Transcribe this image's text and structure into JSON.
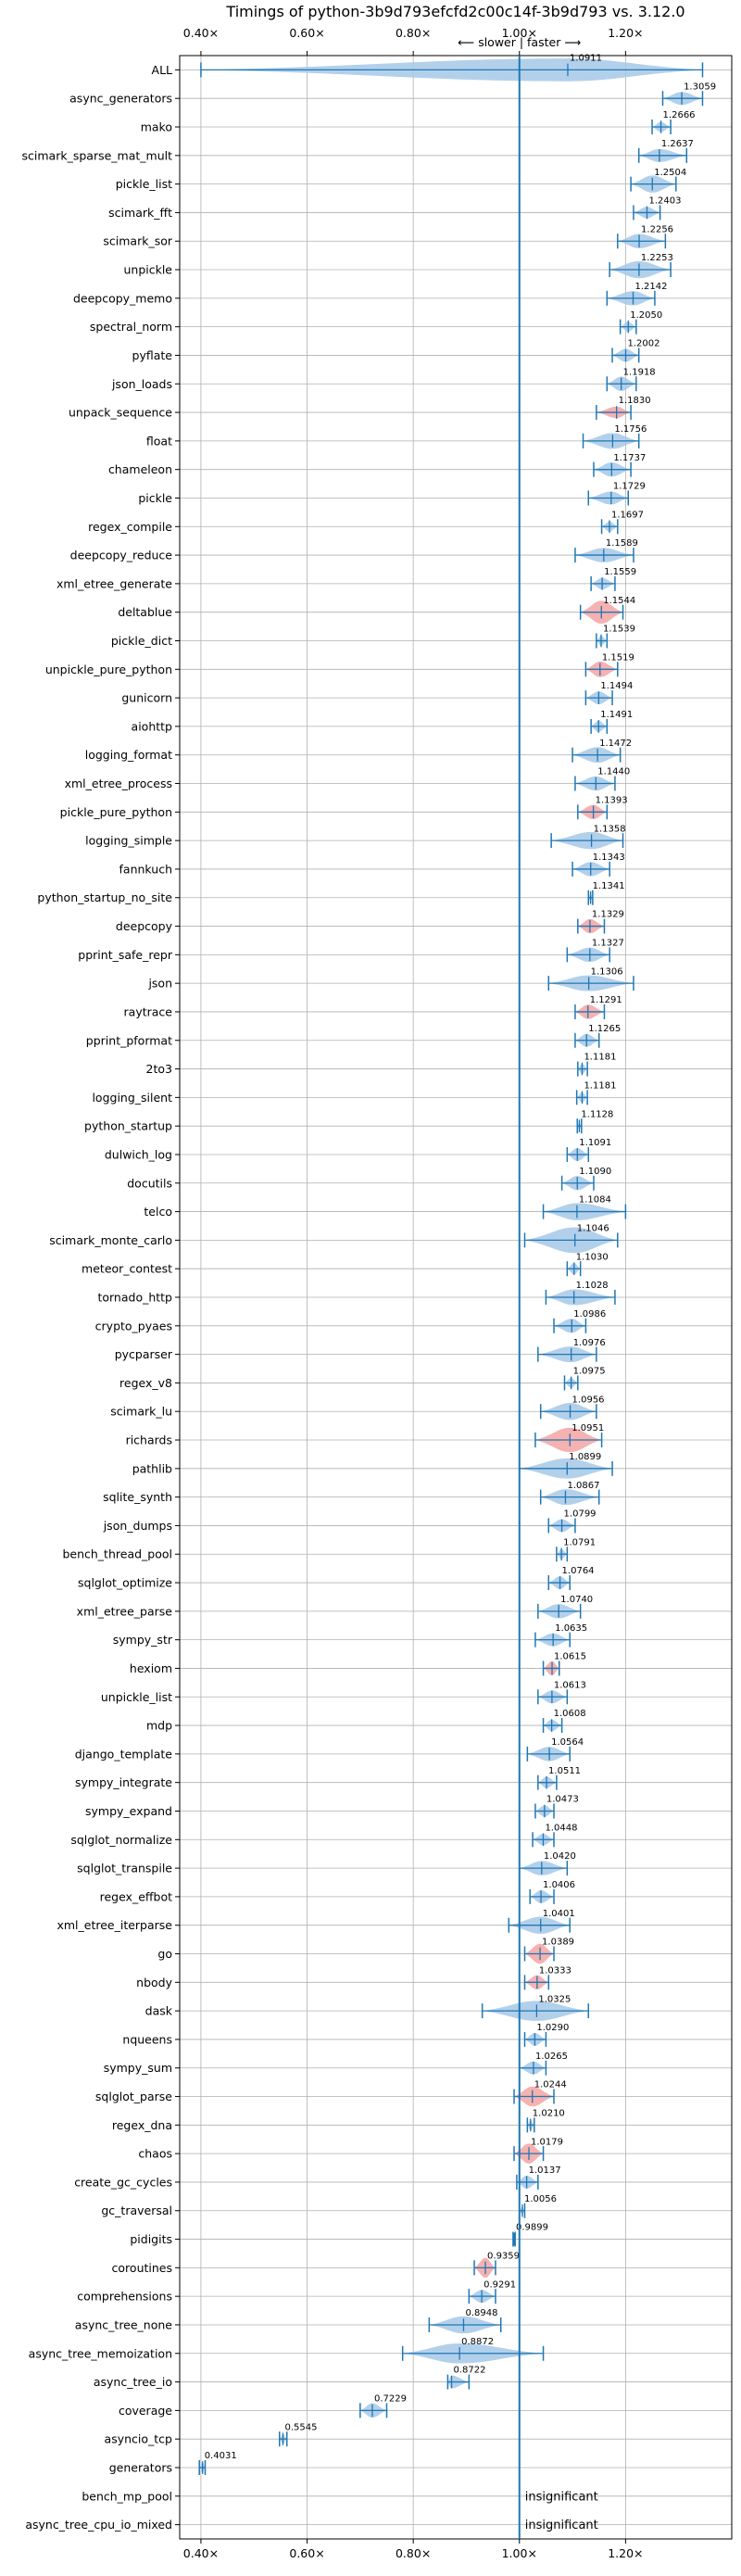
{
  "chart_data": {
    "type": "violin",
    "title": "Timings of python-3b9d793efcfd2c00c14f-3b9d793 vs. 3.12.0",
    "direction_label": "⟵ slower | faster ⟶",
    "x_ticks": [
      {
        "value": 0.4,
        "label": "0.40×"
      },
      {
        "value": 0.6,
        "label": "0.60×"
      },
      {
        "value": 0.8,
        "label": "0.80×"
      },
      {
        "value": 1.0,
        "label": "1.00×"
      },
      {
        "value": 1.2,
        "label": "1.20×"
      }
    ],
    "xlim": [
      0.36,
      1.4
    ],
    "reference_line": 1.0,
    "colors": {
      "faster": "#a6c8e8",
      "slower": "#f5a3a3",
      "line": "#1f77b4",
      "grid": "#b0b0b0"
    },
    "rows": [
      {
        "name": "ALL",
        "value": 1.0911,
        "value_label": "1.0911",
        "min": 0.4,
        "max": 1.345,
        "width": 0.8,
        "slower": false
      },
      {
        "name": "async_generators",
        "value": 1.3059,
        "value_label": "1.3059",
        "min": 1.27,
        "max": 1.345,
        "width": 0.45,
        "slower": false
      },
      {
        "name": "mako",
        "value": 1.2666,
        "value_label": "1.2666",
        "min": 1.25,
        "max": 1.285,
        "width": 0.35,
        "slower": false
      },
      {
        "name": "scimark_sparse_mat_mult",
        "value": 1.2637,
        "value_label": "1.2637",
        "min": 1.225,
        "max": 1.315,
        "width": 0.45,
        "slower": false
      },
      {
        "name": "pickle_list",
        "value": 1.2504,
        "value_label": "1.2504",
        "min": 1.21,
        "max": 1.295,
        "width": 0.6,
        "slower": false
      },
      {
        "name": "scimark_fft",
        "value": 1.2403,
        "value_label": "1.2403",
        "min": 1.215,
        "max": 1.265,
        "width": 0.4,
        "slower": false
      },
      {
        "name": "scimark_sor",
        "value": 1.2256,
        "value_label": "1.2256",
        "min": 1.185,
        "max": 1.275,
        "width": 0.5,
        "slower": false
      },
      {
        "name": "unpickle",
        "value": 1.2253,
        "value_label": "1.2253",
        "min": 1.17,
        "max": 1.285,
        "width": 0.6,
        "slower": false
      },
      {
        "name": "deepcopy_memo",
        "value": 1.2142,
        "value_label": "1.2142",
        "min": 1.165,
        "max": 1.255,
        "width": 0.5,
        "slower": false
      },
      {
        "name": "spectral_norm",
        "value": 1.205,
        "value_label": "1.2050",
        "min": 1.19,
        "max": 1.22,
        "width": 0.35,
        "slower": false
      },
      {
        "name": "pyflate",
        "value": 1.2002,
        "value_label": "1.2002",
        "min": 1.175,
        "max": 1.225,
        "width": 0.45,
        "slower": false
      },
      {
        "name": "json_loads",
        "value": 1.1918,
        "value_label": "1.1918",
        "min": 1.165,
        "max": 1.22,
        "width": 0.5,
        "slower": false
      },
      {
        "name": "unpack_sequence",
        "value": 1.183,
        "value_label": "1.1830",
        "min": 1.145,
        "max": 1.21,
        "width": 0.4,
        "slower": true
      },
      {
        "name": "float",
        "value": 1.1756,
        "value_label": "1.1756",
        "min": 1.12,
        "max": 1.225,
        "width": 0.55,
        "slower": false
      },
      {
        "name": "chameleon",
        "value": 1.1737,
        "value_label": "1.1737",
        "min": 1.14,
        "max": 1.21,
        "width": 0.5,
        "slower": false
      },
      {
        "name": "pickle",
        "value": 1.1729,
        "value_label": "1.1729",
        "min": 1.13,
        "max": 1.205,
        "width": 0.45,
        "slower": false
      },
      {
        "name": "regex_compile",
        "value": 1.1697,
        "value_label": "1.1697",
        "min": 1.155,
        "max": 1.185,
        "width": 0.35,
        "slower": false
      },
      {
        "name": "deepcopy_reduce",
        "value": 1.1589,
        "value_label": "1.1589",
        "min": 1.105,
        "max": 1.215,
        "width": 0.5,
        "slower": false
      },
      {
        "name": "xml_etree_generate",
        "value": 1.1559,
        "value_label": "1.1559",
        "min": 1.135,
        "max": 1.18,
        "width": 0.4,
        "slower": false
      },
      {
        "name": "deltablue",
        "value": 1.1544,
        "value_label": "1.1544",
        "min": 1.115,
        "max": 1.195,
        "width": 0.8,
        "slower": true
      },
      {
        "name": "pickle_dict",
        "value": 1.1539,
        "value_label": "1.1539",
        "min": 1.145,
        "max": 1.165,
        "width": 0.35,
        "slower": false
      },
      {
        "name": "unpickle_pure_python",
        "value": 1.1519,
        "value_label": "1.1519",
        "min": 1.125,
        "max": 1.185,
        "width": 0.55,
        "slower": true
      },
      {
        "name": "gunicorn",
        "value": 1.1494,
        "value_label": "1.1494",
        "min": 1.125,
        "max": 1.175,
        "width": 0.45,
        "slower": false
      },
      {
        "name": "aiohttp",
        "value": 1.1491,
        "value_label": "1.1491",
        "min": 1.135,
        "max": 1.165,
        "width": 0.4,
        "slower": false
      },
      {
        "name": "logging_format",
        "value": 1.1472,
        "value_label": "1.1472",
        "min": 1.1,
        "max": 1.19,
        "width": 0.55,
        "slower": false
      },
      {
        "name": "xml_etree_process",
        "value": 1.144,
        "value_label": "1.1440",
        "min": 1.105,
        "max": 1.18,
        "width": 0.5,
        "slower": false
      },
      {
        "name": "pickle_pure_python",
        "value": 1.1393,
        "value_label": "1.1393",
        "min": 1.11,
        "max": 1.165,
        "width": 0.5,
        "slower": true
      },
      {
        "name": "logging_simple",
        "value": 1.1358,
        "value_label": "1.1358",
        "min": 1.06,
        "max": 1.195,
        "width": 0.6,
        "slower": false
      },
      {
        "name": "fannkuch",
        "value": 1.1343,
        "value_label": "1.1343",
        "min": 1.1,
        "max": 1.17,
        "width": 0.5,
        "slower": false
      },
      {
        "name": "python_startup_no_site",
        "value": 1.1341,
        "value_label": "1.1341",
        "min": 1.13,
        "max": 1.138,
        "width": 0.3,
        "slower": false
      },
      {
        "name": "deepcopy",
        "value": 1.1329,
        "value_label": "1.1329",
        "min": 1.11,
        "max": 1.16,
        "width": 0.5,
        "slower": true
      },
      {
        "name": "pprint_safe_repr",
        "value": 1.1327,
        "value_label": "1.1327",
        "min": 1.09,
        "max": 1.17,
        "width": 0.5,
        "slower": false
      },
      {
        "name": "json",
        "value": 1.1306,
        "value_label": "1.1306",
        "min": 1.055,
        "max": 1.215,
        "width": 0.55,
        "slower": false
      },
      {
        "name": "raytrace",
        "value": 1.1291,
        "value_label": "1.1291",
        "min": 1.105,
        "max": 1.16,
        "width": 0.5,
        "slower": true
      },
      {
        "name": "pprint_pformat",
        "value": 1.1265,
        "value_label": "1.1265",
        "min": 1.105,
        "max": 1.15,
        "width": 0.45,
        "slower": false
      },
      {
        "name": "2to3",
        "value": 1.1181,
        "value_label": "1.1181",
        "min": 1.11,
        "max": 1.128,
        "width": 0.35,
        "slower": false
      },
      {
        "name": "logging_silent",
        "value": 1.1181,
        "value_label": "1.1181",
        "min": 1.108,
        "max": 1.128,
        "width": 0.35,
        "slower": false
      },
      {
        "name": "python_startup",
        "value": 1.1128,
        "value_label": "1.1128",
        "min": 1.109,
        "max": 1.117,
        "width": 0.3,
        "slower": false
      },
      {
        "name": "dulwich_log",
        "value": 1.1091,
        "value_label": "1.1091",
        "min": 1.09,
        "max": 1.13,
        "width": 0.45,
        "slower": false
      },
      {
        "name": "docutils",
        "value": 1.109,
        "value_label": "1.1090",
        "min": 1.08,
        "max": 1.14,
        "width": 0.5,
        "slower": false
      },
      {
        "name": "telco",
        "value": 1.1084,
        "value_label": "1.1084",
        "min": 1.045,
        "max": 1.2,
        "width": 0.6,
        "slower": false
      },
      {
        "name": "scimark_monte_carlo",
        "value": 1.1046,
        "value_label": "1.1046",
        "min": 1.01,
        "max": 1.185,
        "width": 0.9,
        "slower": false
      },
      {
        "name": "meteor_contest",
        "value": 1.103,
        "value_label": "1.1030",
        "min": 1.09,
        "max": 1.115,
        "width": 0.4,
        "slower": false
      },
      {
        "name": "tornado_http",
        "value": 1.1028,
        "value_label": "1.1028",
        "min": 1.05,
        "max": 1.18,
        "width": 0.55,
        "slower": false
      },
      {
        "name": "crypto_pyaes",
        "value": 1.0986,
        "value_label": "1.0986",
        "min": 1.065,
        "max": 1.125,
        "width": 0.5,
        "slower": false
      },
      {
        "name": "pycparser",
        "value": 1.0976,
        "value_label": "1.0976",
        "min": 1.035,
        "max": 1.145,
        "width": 0.55,
        "slower": false
      },
      {
        "name": "regex_v8",
        "value": 1.0975,
        "value_label": "1.0975",
        "min": 1.085,
        "max": 1.11,
        "width": 0.35,
        "slower": false
      },
      {
        "name": "scimark_lu",
        "value": 1.0956,
        "value_label": "1.0956",
        "min": 1.04,
        "max": 1.145,
        "width": 0.6,
        "slower": false
      },
      {
        "name": "richards",
        "value": 1.0951,
        "value_label": "1.0951",
        "min": 1.03,
        "max": 1.155,
        "width": 0.85,
        "slower": true
      },
      {
        "name": "pathlib",
        "value": 1.0899,
        "value_label": "1.0899",
        "min": 1.0,
        "max": 1.175,
        "width": 0.7,
        "slower": false
      },
      {
        "name": "sqlite_synth",
        "value": 1.0867,
        "value_label": "1.0867",
        "min": 1.04,
        "max": 1.15,
        "width": 0.55,
        "slower": false
      },
      {
        "name": "json_dumps",
        "value": 1.0799,
        "value_label": "1.0799",
        "min": 1.055,
        "max": 1.105,
        "width": 0.45,
        "slower": false
      },
      {
        "name": "bench_thread_pool",
        "value": 1.0791,
        "value_label": "1.0791",
        "min": 1.07,
        "max": 1.09,
        "width": 0.35,
        "slower": false
      },
      {
        "name": "sqlglot_optimize",
        "value": 1.0764,
        "value_label": "1.0764",
        "min": 1.055,
        "max": 1.095,
        "width": 0.45,
        "slower": false
      },
      {
        "name": "xml_etree_parse",
        "value": 1.074,
        "value_label": "1.0740",
        "min": 1.035,
        "max": 1.115,
        "width": 0.5,
        "slower": false
      },
      {
        "name": "sympy_str",
        "value": 1.0635,
        "value_label": "1.0635",
        "min": 1.03,
        "max": 1.095,
        "width": 0.45,
        "slower": false
      },
      {
        "name": "hexiom",
        "value": 1.0615,
        "value_label": "1.0615",
        "min": 1.045,
        "max": 1.075,
        "width": 0.5,
        "slower": true
      },
      {
        "name": "unpickle_list",
        "value": 1.0613,
        "value_label": "1.0613",
        "min": 1.035,
        "max": 1.09,
        "width": 0.45,
        "slower": false
      },
      {
        "name": "mdp",
        "value": 1.0608,
        "value_label": "1.0608",
        "min": 1.045,
        "max": 1.08,
        "width": 0.4,
        "slower": false
      },
      {
        "name": "django_template",
        "value": 1.0564,
        "value_label": "1.0564",
        "min": 1.015,
        "max": 1.095,
        "width": 0.5,
        "slower": false
      },
      {
        "name": "sympy_integrate",
        "value": 1.0511,
        "value_label": "1.0511",
        "min": 1.035,
        "max": 1.07,
        "width": 0.4,
        "slower": false
      },
      {
        "name": "sympy_expand",
        "value": 1.0473,
        "value_label": "1.0473",
        "min": 1.03,
        "max": 1.065,
        "width": 0.4,
        "slower": false
      },
      {
        "name": "sqlglot_normalize",
        "value": 1.0448,
        "value_label": "1.0448",
        "min": 1.025,
        "max": 1.065,
        "width": 0.4,
        "slower": false
      },
      {
        "name": "sqlglot_transpile",
        "value": 1.042,
        "value_label": "1.0420",
        "min": 1.0,
        "max": 1.09,
        "width": 0.5,
        "slower": false
      },
      {
        "name": "regex_effbot",
        "value": 1.0406,
        "value_label": "1.0406",
        "min": 1.02,
        "max": 1.065,
        "width": 0.45,
        "slower": false
      },
      {
        "name": "xml_etree_iterparse",
        "value": 1.0401,
        "value_label": "1.0401",
        "min": 0.98,
        "max": 1.095,
        "width": 0.6,
        "slower": false
      },
      {
        "name": "go",
        "value": 1.0389,
        "value_label": "1.0389",
        "min": 1.01,
        "max": 1.065,
        "width": 0.7,
        "slower": true
      },
      {
        "name": "nbody",
        "value": 1.0333,
        "value_label": "1.0333",
        "min": 1.01,
        "max": 1.055,
        "width": 0.5,
        "slower": true
      },
      {
        "name": "dask",
        "value": 1.0325,
        "value_label": "1.0325",
        "min": 0.93,
        "max": 1.13,
        "width": 0.7,
        "slower": false
      },
      {
        "name": "nqueens",
        "value": 1.029,
        "value_label": "1.0290",
        "min": 1.01,
        "max": 1.05,
        "width": 0.45,
        "slower": false
      },
      {
        "name": "sympy_sum",
        "value": 1.0265,
        "value_label": "1.0265",
        "min": 1.0,
        "max": 1.05,
        "width": 0.45,
        "slower": false
      },
      {
        "name": "sqlglot_parse",
        "value": 1.0244,
        "value_label": "1.0244",
        "min": 0.99,
        "max": 1.065,
        "width": 0.7,
        "slower": true
      },
      {
        "name": "regex_dna",
        "value": 1.021,
        "value_label": "1.0210",
        "min": 1.015,
        "max": 1.028,
        "width": 0.35,
        "slower": false
      },
      {
        "name": "chaos",
        "value": 1.0179,
        "value_label": "1.0179",
        "min": 0.99,
        "max": 1.045,
        "width": 0.7,
        "slower": true
      },
      {
        "name": "create_gc_cycles",
        "value": 1.0137,
        "value_label": "1.0137",
        "min": 0.995,
        "max": 1.035,
        "width": 0.45,
        "slower": false
      },
      {
        "name": "gc_traversal",
        "value": 1.0056,
        "value_label": "1.0056",
        "min": 1.0,
        "max": 1.01,
        "width": 0.3,
        "slower": false
      },
      {
        "name": "pidigits",
        "value": 0.9899,
        "value_label": "0.9899",
        "min": 0.988,
        "max": 0.992,
        "width": 0.25,
        "slower": false
      },
      {
        "name": "coroutines",
        "value": 0.9359,
        "value_label": "0.9359",
        "min": 0.915,
        "max": 0.955,
        "width": 0.7,
        "slower": true
      },
      {
        "name": "comprehensions",
        "value": 0.9291,
        "value_label": "0.9291",
        "min": 0.905,
        "max": 0.955,
        "width": 0.45,
        "slower": false
      },
      {
        "name": "async_tree_none",
        "value": 0.8948,
        "value_label": "0.8948",
        "min": 0.83,
        "max": 0.965,
        "width": 0.6,
        "slower": false
      },
      {
        "name": "async_tree_memoization",
        "value": 0.8872,
        "value_label": "0.8872",
        "min": 0.78,
        "max": 1.045,
        "width": 0.7,
        "slower": false
      },
      {
        "name": "async_tree_io",
        "value": 0.8722,
        "value_label": "0.8722",
        "min": 0.865,
        "max": 0.905,
        "width": 0.45,
        "slower": false
      },
      {
        "name": "coverage",
        "value": 0.7229,
        "value_label": "0.7229",
        "min": 0.7,
        "max": 0.75,
        "width": 0.5,
        "slower": false
      },
      {
        "name": "asyncio_tcp",
        "value": 0.5545,
        "value_label": "0.5545",
        "min": 0.548,
        "max": 0.562,
        "width": 0.35,
        "slower": false
      },
      {
        "name": "generators",
        "value": 0.4031,
        "value_label": "0.4031",
        "min": 0.397,
        "max": 0.408,
        "width": 0.35,
        "slower": false
      },
      {
        "name": "bench_mp_pool",
        "value": null,
        "value_label": "insignificant",
        "insignificant": true
      },
      {
        "name": "async_tree_cpu_io_mixed",
        "value": null,
        "value_label": "insignificant",
        "insignificant": true
      }
    ]
  }
}
